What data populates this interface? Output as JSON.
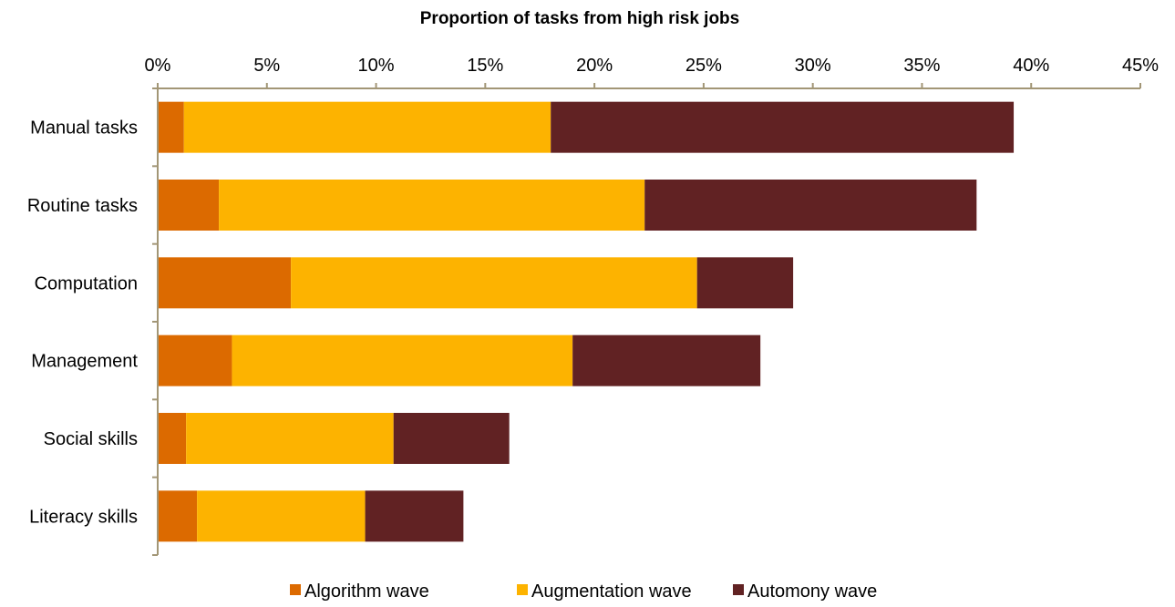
{
  "chart_data": {
    "type": "bar",
    "orientation": "horizontal",
    "stacked": true,
    "title": "Proportion of tasks from high risk jobs",
    "xlabel": "",
    "ylabel": "",
    "xlim": [
      0,
      45
    ],
    "x_ticks": [
      "0%",
      "5%",
      "10%",
      "15%",
      "20%",
      "25%",
      "30%",
      "35%",
      "40%",
      "45%"
    ],
    "x_tick_values": [
      0,
      5,
      10,
      15,
      20,
      25,
      30,
      35,
      40,
      45
    ],
    "axis_position": "top",
    "grid": false,
    "legend_position": "bottom",
    "categories": [
      "Manual tasks",
      "Routine tasks",
      "Computation",
      "Management",
      "Social skills",
      "Literacy skills"
    ],
    "series": [
      {
        "name": "Algorithm wave",
        "color": "#DC6A00",
        "values": [
          1.2,
          2.8,
          6.1,
          3.4,
          1.3,
          1.8
        ]
      },
      {
        "name": "Augmentation wave",
        "color": "#FDB300",
        "values": [
          16.8,
          19.5,
          18.6,
          15.6,
          9.5,
          7.7
        ]
      },
      {
        "name": "Automony wave",
        "color": "#612223",
        "values": [
          21.2,
          15.2,
          4.4,
          8.6,
          5.3,
          4.5
        ]
      }
    ]
  }
}
